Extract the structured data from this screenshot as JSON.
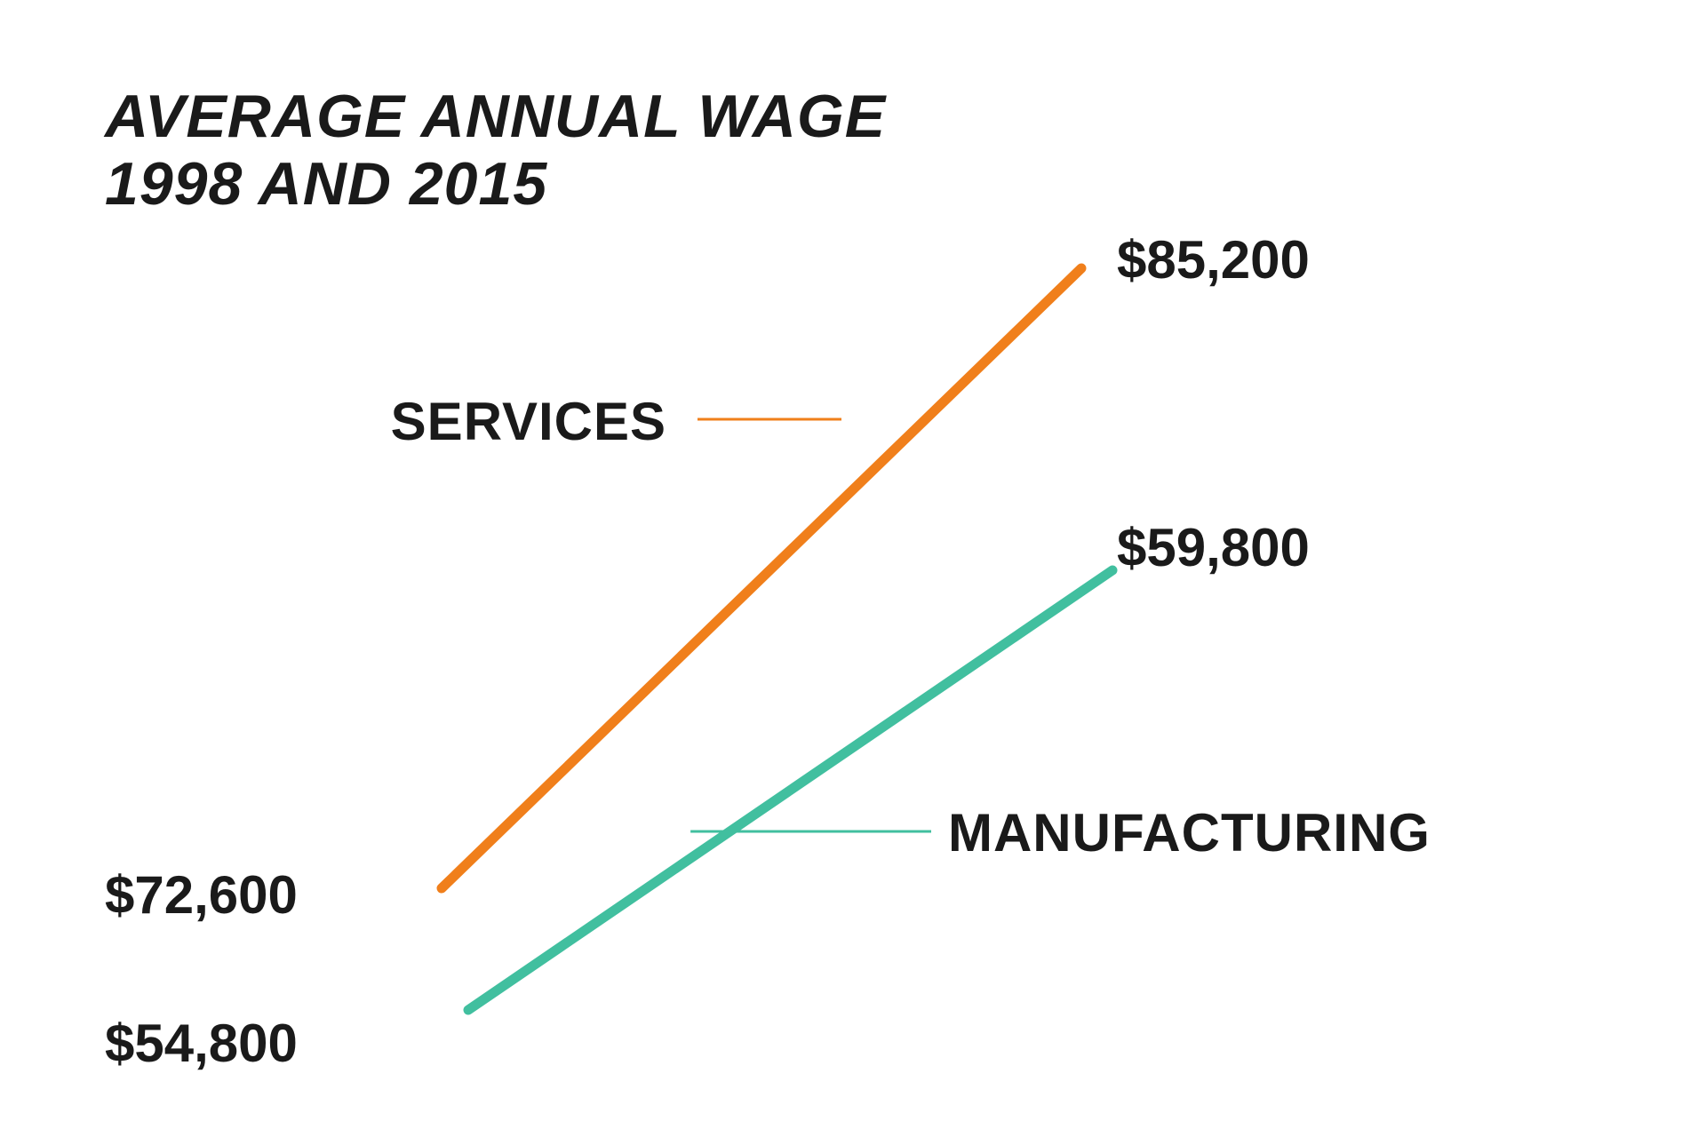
{
  "chart_data": {
    "type": "line",
    "title": "AVERAGE ANNUAL WAGE",
    "subtitle": "1998 AND 2015",
    "categories": [
      "1998",
      "2015"
    ],
    "series": [
      {
        "name": "SERVICES",
        "values": [
          72600,
          85200
        ],
        "value_labels": [
          "$72,600",
          "$85,200"
        ],
        "color": "#f07f1b"
      },
      {
        "name": "MANUFACTURING",
        "values": [
          54800,
          59800
        ],
        "value_labels": [
          "$54,800",
          "$59,800"
        ],
        "color": "#41bf9f"
      }
    ],
    "xlabel": "",
    "ylabel": "",
    "grid": false,
    "legend": "none"
  }
}
